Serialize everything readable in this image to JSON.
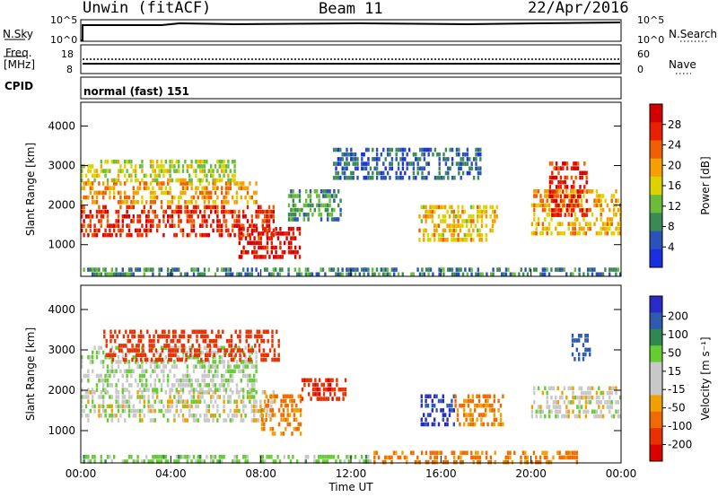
{
  "header": {
    "station": "Unwin (fitACF)",
    "beam": "Beam 11",
    "date": "22/Apr/2016"
  },
  "panels": {
    "nsky_label": "N.Sky",
    "nsearch_label": "N.Search",
    "nsky_ticks": [
      "10^5",
      "10^0"
    ],
    "nsearch_ticks": [
      "10^5",
      "10^0"
    ],
    "freq_label_1": "Freq.",
    "freq_label_2": "[MHz]",
    "freq_ticks": [
      "18",
      "8"
    ],
    "nave_label": "Nave",
    "nave_ticks": [
      "60",
      "0"
    ],
    "cpid_label": "CPID",
    "cpid_value": "normal (fast) 151"
  },
  "colors": {
    "power_scale": [
      "#1a2fe0",
      "#2a52b8",
      "#3a8a55",
      "#6cbc3c",
      "#dcd200",
      "#f5a000",
      "#f06000",
      "#e82000",
      "#d40000"
    ],
    "velocity_scale": [
      "#2a2ac8",
      "#2e5ab0",
      "#2e8850",
      "#66cc33",
      "#c8c8c8",
      "#c8c8c8",
      "#f0a000",
      "#f06a00",
      "#e83000",
      "#dc0000"
    ]
  },
  "chart_data": [
    {
      "type": "heatmap",
      "title": "Power",
      "ylabel": "Slant Range [km]",
      "y_ticks": [
        "1000",
        "2000",
        "3000",
        "4000"
      ],
      "ylim": [
        200,
        4600
      ],
      "colorbar_label": "Power [dB]",
      "colorbar_ticks": [
        "4",
        "8",
        "12",
        "16",
        "20",
        "24",
        "28"
      ],
      "colorbar_range": [
        0,
        30
      ],
      "regions": [
        {
          "t0": 0.0,
          "t1": 8.6,
          "r0": 1250,
          "r1": 2000,
          "level": 25
        },
        {
          "t0": 0.0,
          "t1": 7.8,
          "r0": 2050,
          "r1": 2600,
          "level": 19
        },
        {
          "t0": 0.0,
          "t1": 6.8,
          "r0": 2650,
          "r1": 3150,
          "level": 14
        },
        {
          "t0": 7.0,
          "t1": 9.7,
          "r0": 700,
          "r1": 1450,
          "level": 27
        },
        {
          "t0": 9.2,
          "t1": 11.5,
          "r0": 1600,
          "r1": 2400,
          "level": 9
        },
        {
          "t0": 11.2,
          "t1": 17.8,
          "r0": 2700,
          "r1": 3450,
          "level": 6
        },
        {
          "t0": 15.0,
          "t1": 18.5,
          "r0": 1100,
          "r1": 2000,
          "level": 17
        },
        {
          "t0": 20.0,
          "t1": 24.0,
          "r0": 1300,
          "r1": 2400,
          "level": 18
        },
        {
          "t0": 20.8,
          "t1": 22.5,
          "r0": 1800,
          "r1": 3100,
          "level": 26
        },
        {
          "t0": 0.0,
          "t1": 24.0,
          "r0": 200,
          "r1": 420,
          "level": 8
        }
      ]
    },
    {
      "type": "heatmap",
      "title": "Velocity",
      "xlabel": "Time UT",
      "ylabel": "Slant Range [km]",
      "x_ticks": [
        "00:00",
        "04:00",
        "08:00",
        "12:00",
        "16:00",
        "20:00",
        "00:00"
      ],
      "xlim": [
        0,
        24
      ],
      "y_ticks": [
        "1000",
        "2000",
        "3000",
        "4000"
      ],
      "ylim": [
        200,
        4600
      ],
      "colorbar_label": "Velocity [m s⁻¹]",
      "colorbar_ticks": [
        "200",
        "100",
        "50",
        "15",
        "-15",
        "-50",
        "-100",
        "-200"
      ],
      "regions": [
        {
          "t0": 0.0,
          "t1": 8.6,
          "r0": 1200,
          "r1": 2000,
          "v": 0
        },
        {
          "t0": 0.0,
          "t1": 7.8,
          "r0": 2050,
          "r1": 3100,
          "v": 10
        },
        {
          "t0": 1.0,
          "t1": 8.8,
          "r0": 2700,
          "r1": 3500,
          "v": -150
        },
        {
          "t0": 8.0,
          "t1": 9.8,
          "r0": 900,
          "r1": 1900,
          "v": -60
        },
        {
          "t0": 9.8,
          "t1": 11.8,
          "r0": 1800,
          "r1": 2300,
          "v": -180
        },
        {
          "t0": 15.0,
          "t1": 16.6,
          "r0": 1150,
          "r1": 1900,
          "v": 200
        },
        {
          "t0": 16.6,
          "t1": 18.8,
          "r0": 1200,
          "r1": 1900,
          "v": -60
        },
        {
          "t0": 20.0,
          "t1": 24.0,
          "r0": 1300,
          "r1": 2100,
          "v": 0
        },
        {
          "t0": 21.8,
          "t1": 22.6,
          "r0": 2800,
          "r1": 3400,
          "v": 180
        },
        {
          "t0": 13.0,
          "t1": 22.0,
          "r0": 200,
          "r1": 500,
          "v": -60
        },
        {
          "t0": 0.0,
          "t1": 13.0,
          "r0": 200,
          "r1": 400,
          "v": 30
        }
      ]
    }
  ]
}
